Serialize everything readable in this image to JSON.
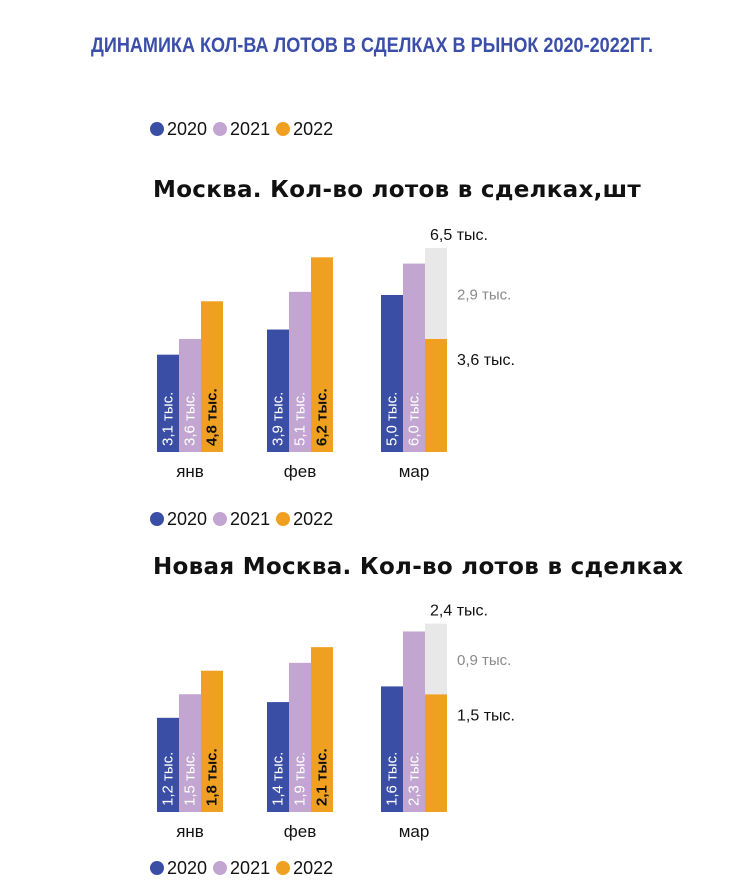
{
  "main_title": "ДИНАМИКА КОЛ-ВА ЛОТОВ В СДЕЛКАХ В РЫНОК 2020-2022ГГ.",
  "legend": [
    {
      "label": "2020",
      "color": "#3a4ea6"
    },
    {
      "label": "2021",
      "color": "#c3a5d1"
    },
    {
      "label": "2022",
      "color": "#f0a020"
    }
  ],
  "chart_data": [
    {
      "type": "bar",
      "title": "Москва. Кол-во лотов в сделках,шт",
      "categories": [
        "янв",
        "фев",
        "мар"
      ],
      "series": [
        {
          "name": "2020",
          "color": "#3a4ea6",
          "values": [
            3.1,
            3.9,
            5.0
          ],
          "labels": [
            "3,1 тыс.",
            "3,9 тыс.",
            "5,0 тыс."
          ]
        },
        {
          "name": "2021",
          "color": "#c3a5d1",
          "values": [
            3.6,
            5.1,
            6.0
          ],
          "labels": [
            "3,6 тыс.",
            "5,1 тыс.",
            "6,0 тыс."
          ]
        },
        {
          "name": "2022",
          "color": "#f0a020",
          "values": [
            4.8,
            6.2,
            3.6
          ],
          "labels": [
            "4,8 тыс.",
            "6,2 тыс.",
            ""
          ]
        }
      ],
      "stacked_extension": {
        "category": "мар",
        "base_value": 3.6,
        "base_label": "3,6 тыс.",
        "extension_value": 2.9,
        "extension_label": "2,9 тыс.",
        "total_value": 6.5,
        "total_label": "6,5 тыс.",
        "color": "#e8e8e8"
      }
    },
    {
      "type": "bar",
      "title": "Новая Москва. Кол-во лотов в сделках",
      "categories": [
        "янв",
        "фев",
        "мар"
      ],
      "series": [
        {
          "name": "2020",
          "color": "#3a4ea6",
          "values": [
            1.2,
            1.4,
            1.6
          ],
          "labels": [
            "1,2 тыс.",
            "1,4 тыс.",
            "1,6 тыс."
          ]
        },
        {
          "name": "2021",
          "color": "#c3a5d1",
          "values": [
            1.5,
            1.9,
            2.3
          ],
          "labels": [
            "1,5 тыс.",
            "1,9 тыс.",
            "2,3 тыс."
          ]
        },
        {
          "name": "2022",
          "color": "#f0a020",
          "values": [
            1.8,
            2.1,
            1.5
          ],
          "labels": [
            "1,8 тыс.",
            "2,1 тыс.",
            ""
          ]
        }
      ],
      "stacked_extension": {
        "category": "мар",
        "base_value": 1.5,
        "base_label": "1,5 тыс.",
        "extension_value": 0.9,
        "extension_label": "0,9 тыс.",
        "total_value": 2.4,
        "total_label": "2,4 тыс.",
        "color": "#e8e8e8"
      }
    }
  ]
}
